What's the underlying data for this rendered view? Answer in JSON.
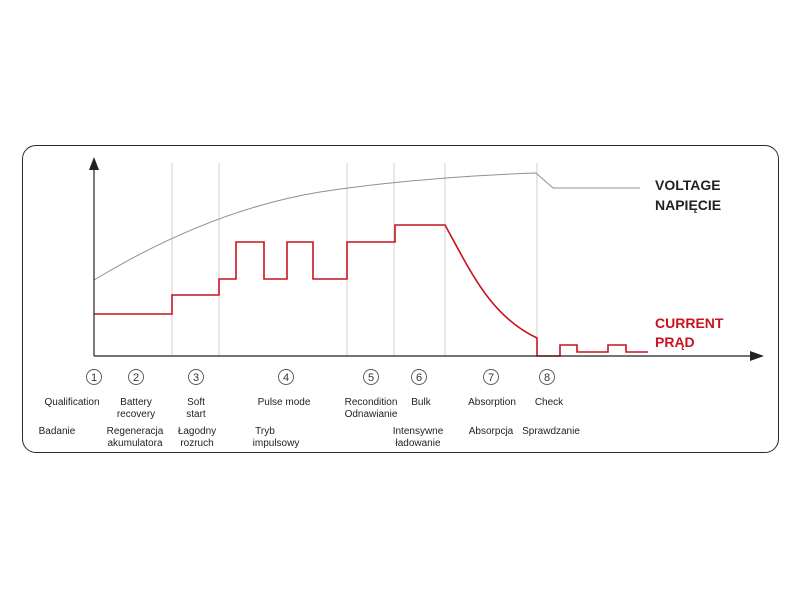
{
  "legend": {
    "voltage_en": "VOLTAGE",
    "voltage_pl": "NAPIĘCIE",
    "current_en": "CURRENT",
    "current_pl": "PRĄD"
  },
  "colors": {
    "voltage": "#8f8f8f",
    "current": "#c8141e",
    "divider": "#c4c4c4",
    "axis": "#222222",
    "frame": "#2b2b2b"
  },
  "stages": [
    {
      "number": "1",
      "en": [
        "Qualification"
      ],
      "pl": [
        "Badanie"
      ]
    },
    {
      "number": "2",
      "en": [
        "Battery",
        "recovery"
      ],
      "pl": [
        "Regeneracja",
        "akumulatora"
      ]
    },
    {
      "number": "3",
      "en": [
        "Soft",
        "start"
      ],
      "pl": [
        "Łagodny",
        "rozruch"
      ]
    },
    {
      "number": "4",
      "en": [
        "Pulse mode"
      ],
      "pl": [
        "Tryb",
        "impulsowy"
      ]
    },
    {
      "number": "5",
      "en": [
        "Recondition",
        "Odnawianie"
      ],
      "pl": []
    },
    {
      "number": "6",
      "en": [
        "Bulk"
      ],
      "pl": [
        "Intensywne",
        "ładowanie"
      ]
    },
    {
      "number": "7",
      "en": [
        "Absorption"
      ],
      "pl": [
        "Absorpcja"
      ]
    },
    {
      "number": "8",
      "en": [
        "Check"
      ],
      "pl": [
        "Sprawdzanie"
      ]
    }
  ]
}
